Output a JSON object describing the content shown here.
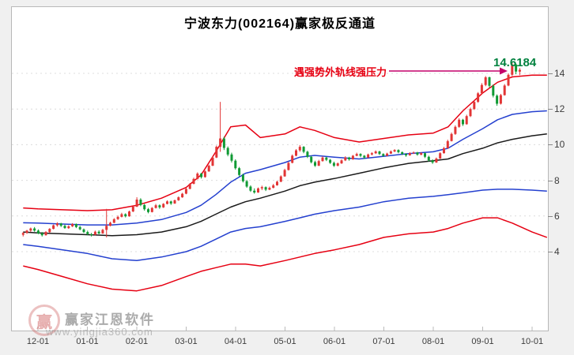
{
  "header": {
    "title": "宁波东力(002164)赢家极反通道"
  },
  "annotation": {
    "pressure_text": "遇强势外轨线强压力",
    "price_label": "14.6184",
    "text_color": "#e60012",
    "arrow_color": "#c4006a",
    "price_color": "#00813e"
  },
  "watermark": {
    "logo_char": "赢",
    "brand": "赢家江恩软件",
    "url": "www.yingjia360.com"
  },
  "chart_data": {
    "type": "candlestick",
    "title": "宁波东力(002164)赢家极反通道",
    "stock_code": "002164",
    "last_price": 14.6184,
    "grid": "dotted-horizontal",
    "colors": {
      "up": "#e23535",
      "down": "#109a34"
    },
    "x_axis": {
      "labels": [
        "12-01",
        "01-01",
        "02-01",
        "03-01",
        "04-01",
        "05-01",
        "06-01",
        "07-01",
        "08-01",
        "09-01",
        "10-01"
      ]
    },
    "y_axis": {
      "ticks": [
        14,
        12,
        10,
        8,
        6,
        4
      ],
      "range": [
        1.2,
        15.2
      ]
    },
    "series": {
      "channel_months": [
        -0.3,
        0,
        0.5,
        1,
        1.5,
        2,
        2.5,
        3,
        3.3,
        3.6,
        3.9,
        4.2,
        4.5,
        5,
        5.3,
        5.6,
        6,
        6.5,
        7,
        7.5,
        8,
        8.3,
        8.6,
        9,
        9.3,
        9.6,
        10,
        10.3
      ],
      "channel_lines": [
        {
          "name": "outer-upper-track",
          "color": "#e60012",
          "values": [
            6.45,
            6.4,
            6.35,
            6.3,
            6.35,
            6.6,
            7.0,
            7.6,
            8.3,
            9.6,
            11.0,
            11.1,
            10.4,
            10.6,
            11.0,
            10.8,
            10.4,
            10.15,
            10.35,
            10.55,
            10.65,
            11.0,
            11.9,
            12.9,
            13.5,
            13.8,
            13.9,
            13.9
          ]
        },
        {
          "name": "inner-upper-track",
          "color": "#2440cf",
          "values": [
            5.62,
            5.6,
            5.55,
            5.5,
            5.5,
            5.6,
            5.8,
            6.2,
            6.6,
            7.2,
            7.9,
            8.4,
            8.6,
            9.0,
            9.3,
            9.4,
            9.3,
            9.2,
            9.35,
            9.5,
            9.6,
            9.8,
            10.3,
            10.9,
            11.4,
            11.7,
            11.85,
            11.9
          ]
        },
        {
          "name": "life-line",
          "color": "#1a1a1a",
          "values": [
            5.1,
            5.05,
            5.0,
            4.95,
            4.9,
            4.95,
            5.1,
            5.4,
            5.7,
            6.1,
            6.5,
            6.8,
            7.0,
            7.4,
            7.7,
            7.9,
            8.1,
            8.4,
            8.7,
            8.95,
            9.1,
            9.2,
            9.5,
            9.8,
            10.1,
            10.3,
            10.5,
            10.6
          ]
        },
        {
          "name": "inner-lower-track",
          "color": "#2440cf",
          "values": [
            4.4,
            4.3,
            4.1,
            3.9,
            3.6,
            3.5,
            3.7,
            4.0,
            4.3,
            4.7,
            5.1,
            5.3,
            5.4,
            5.7,
            5.9,
            6.1,
            6.3,
            6.5,
            6.8,
            7.0,
            7.1,
            7.2,
            7.3,
            7.45,
            7.5,
            7.5,
            7.45,
            7.4
          ]
        },
        {
          "name": "outer-lower-track",
          "color": "#e60012",
          "values": [
            3.2,
            3.0,
            2.6,
            2.2,
            1.9,
            1.8,
            2.1,
            2.6,
            2.9,
            3.1,
            3.3,
            3.3,
            3.2,
            3.5,
            3.7,
            3.9,
            4.1,
            4.4,
            4.8,
            5.0,
            5.1,
            5.3,
            5.6,
            5.9,
            5.9,
            5.6,
            5.1,
            4.8
          ]
        }
      ],
      "candles": {
        "start_month": -0.3,
        "end_month": 9.75,
        "ohlc": [
          [
            4.95,
            5.1,
            4.85,
            5.05
          ],
          [
            5.05,
            5.22,
            5.0,
            5.18
          ],
          [
            5.18,
            5.35,
            5.1,
            5.3
          ],
          [
            5.3,
            5.38,
            5.12,
            5.18
          ],
          [
            5.18,
            5.25,
            4.98,
            5.02
          ],
          [
            5.02,
            5.1,
            4.85,
            4.92
          ],
          [
            4.92,
            5.15,
            4.9,
            5.1
          ],
          [
            5.1,
            5.32,
            5.05,
            5.28
          ],
          [
            5.28,
            5.52,
            5.25,
            5.48
          ],
          [
            5.48,
            5.65,
            5.4,
            5.58
          ],
          [
            5.58,
            5.62,
            5.38,
            5.45
          ],
          [
            5.45,
            5.52,
            5.28,
            5.32
          ],
          [
            5.32,
            5.48,
            5.28,
            5.42
          ],
          [
            5.42,
            5.6,
            5.38,
            5.55
          ],
          [
            5.55,
            5.58,
            5.32,
            5.38
          ],
          [
            5.38,
            5.45,
            5.2,
            5.25
          ],
          [
            5.25,
            5.3,
            5.05,
            5.1
          ],
          [
            5.1,
            5.18,
            4.92,
            4.98
          ],
          [
            4.98,
            5.05,
            4.85,
            4.95
          ],
          [
            4.95,
            5.18,
            4.92,
            5.12
          ],
          [
            5.12,
            5.2,
            4.98,
            5.02
          ],
          [
            5.02,
            5.28,
            5.0,
            5.22
          ],
          [
            5.22,
            6.4,
            4.8,
            5.45
          ],
          [
            5.45,
            5.68,
            5.42,
            5.62
          ],
          [
            5.62,
            5.88,
            5.6,
            5.82
          ],
          [
            5.82,
            6.02,
            5.78,
            5.95
          ],
          [
            5.95,
            6.18,
            5.92,
            6.1
          ],
          [
            6.1,
            6.15,
            5.92,
            5.98
          ],
          [
            5.98,
            6.3,
            5.96,
            6.25
          ],
          [
            6.25,
            6.6,
            6.22,
            6.52
          ],
          [
            6.52,
            7.05,
            6.5,
            6.92
          ],
          [
            6.92,
            7.0,
            6.55,
            6.62
          ],
          [
            6.62,
            6.68,
            6.3,
            6.38
          ],
          [
            6.38,
            6.45,
            6.15,
            6.22
          ],
          [
            6.22,
            6.5,
            6.2,
            6.45
          ],
          [
            6.45,
            6.68,
            6.42,
            6.6
          ],
          [
            6.6,
            6.65,
            6.4,
            6.48
          ],
          [
            6.48,
            6.72,
            6.45,
            6.68
          ],
          [
            6.68,
            6.88,
            6.65,
            6.82
          ],
          [
            6.82,
            6.86,
            6.62,
            6.7
          ],
          [
            6.7,
            6.92,
            6.68,
            6.88
          ],
          [
            6.88,
            7.1,
            6.85,
            7.05
          ],
          [
            7.05,
            7.3,
            7.02,
            7.25
          ],
          [
            7.25,
            7.58,
            7.22,
            7.52
          ],
          [
            7.52,
            7.85,
            7.5,
            7.8
          ],
          [
            7.8,
            8.15,
            7.78,
            8.08
          ],
          [
            8.08,
            8.45,
            8.05,
            8.38
          ],
          [
            8.38,
            8.42,
            8.1,
            8.18
          ],
          [
            8.18,
            8.55,
            8.15,
            8.5
          ],
          [
            8.5,
            8.88,
            8.48,
            8.82
          ],
          [
            8.82,
            9.35,
            8.8,
            9.28
          ],
          [
            9.28,
            9.95,
            9.25,
            9.88
          ],
          [
            9.88,
            12.4,
            9.6,
            10.35
          ],
          [
            10.35,
            10.45,
            9.7,
            9.82
          ],
          [
            9.82,
            9.9,
            9.35,
            9.45
          ],
          [
            9.45,
            9.55,
            9.0,
            9.1
          ],
          [
            9.1,
            9.18,
            8.6,
            8.68
          ],
          [
            8.68,
            8.75,
            8.22,
            8.3
          ],
          [
            8.3,
            8.38,
            7.88,
            7.95
          ],
          [
            7.95,
            8.02,
            7.58,
            7.65
          ],
          [
            7.65,
            7.72,
            7.35,
            7.42
          ],
          [
            7.42,
            7.55,
            7.25,
            7.32
          ],
          [
            7.32,
            7.6,
            7.3,
            7.55
          ],
          [
            7.55,
            7.7,
            7.45,
            7.62
          ],
          [
            7.62,
            7.66,
            7.4,
            7.48
          ],
          [
            7.48,
            7.65,
            7.45,
            7.58
          ],
          [
            7.58,
            7.8,
            7.55,
            7.72
          ],
          [
            7.72,
            7.98,
            7.7,
            7.92
          ],
          [
            7.92,
            8.28,
            7.9,
            8.22
          ],
          [
            8.22,
            8.65,
            8.2,
            8.58
          ],
          [
            8.58,
            9.05,
            8.55,
            8.98
          ],
          [
            8.98,
            9.45,
            8.95,
            9.38
          ],
          [
            9.38,
            9.75,
            9.35,
            9.68
          ],
          [
            9.68,
            9.98,
            9.6,
            9.88
          ],
          [
            9.88,
            9.92,
            9.52,
            9.6
          ],
          [
            9.6,
            9.66,
            9.25,
            9.32
          ],
          [
            9.32,
            9.38,
            8.95,
            9.02
          ],
          [
            9.02,
            9.1,
            8.75,
            8.82
          ],
          [
            8.82,
            9.15,
            8.8,
            9.08
          ],
          [
            9.08,
            9.35,
            9.05,
            9.28
          ],
          [
            9.28,
            9.32,
            9.08,
            9.15
          ],
          [
            9.15,
            9.2,
            8.92,
            8.98
          ],
          [
            8.98,
            9.05,
            8.75,
            8.82
          ],
          [
            8.82,
            9.0,
            8.78,
            8.95
          ],
          [
            8.95,
            9.18,
            8.92,
            9.12
          ],
          [
            9.12,
            9.35,
            9.08,
            9.28
          ],
          [
            9.28,
            9.32,
            9.1,
            9.18
          ],
          [
            9.18,
            9.42,
            9.15,
            9.38
          ],
          [
            9.38,
            9.55,
            9.35,
            9.48
          ],
          [
            9.48,
            9.52,
            9.3,
            9.38
          ],
          [
            9.38,
            9.42,
            9.2,
            9.28
          ],
          [
            9.28,
            9.5,
            9.25,
            9.45
          ],
          [
            9.45,
            9.58,
            9.4,
            9.52
          ],
          [
            9.52,
            9.68,
            9.48,
            9.62
          ],
          [
            9.62,
            9.66,
            9.42,
            9.48
          ],
          [
            9.48,
            9.52,
            9.32,
            9.38
          ],
          [
            9.38,
            9.55,
            9.35,
            9.5
          ],
          [
            9.5,
            9.68,
            9.48,
            9.62
          ],
          [
            9.62,
            9.75,
            9.58,
            9.7
          ],
          [
            9.7,
            9.74,
            9.52,
            9.58
          ],
          [
            9.58,
            9.62,
            9.42,
            9.48
          ],
          [
            9.48,
            9.52,
            9.32,
            9.4
          ],
          [
            9.4,
            9.58,
            9.38,
            9.52
          ],
          [
            9.52,
            9.62,
            9.48,
            9.56
          ],
          [
            9.56,
            9.6,
            9.38,
            9.44
          ],
          [
            9.44,
            9.58,
            9.4,
            9.52
          ],
          [
            9.52,
            9.56,
            9.25,
            9.32
          ],
          [
            9.32,
            9.38,
            9.05,
            9.12
          ],
          [
            9.12,
            9.18,
            8.92,
            9.0
          ],
          [
            9.0,
            9.28,
            8.98,
            9.22
          ],
          [
            9.22,
            9.58,
            9.2,
            9.52
          ],
          [
            9.52,
            9.88,
            9.5,
            9.8
          ],
          [
            9.8,
            10.28,
            9.78,
            10.2
          ],
          [
            10.2,
            10.68,
            10.18,
            10.6
          ],
          [
            10.6,
            11.08,
            10.55,
            11.0
          ],
          [
            11.0,
            11.48,
            10.95,
            11.4
          ],
          [
            11.4,
            11.45,
            11.05,
            11.15
          ],
          [
            11.15,
            11.68,
            11.12,
            11.6
          ],
          [
            11.6,
            12.08,
            11.55,
            12.0
          ],
          [
            12.0,
            12.5,
            11.95,
            12.4
          ],
          [
            12.4,
            12.95,
            12.35,
            12.88
          ],
          [
            12.88,
            13.45,
            12.82,
            13.35
          ],
          [
            13.35,
            13.85,
            13.28,
            13.78
          ],
          [
            13.78,
            13.82,
            13.2,
            13.3
          ],
          [
            13.3,
            13.38,
            12.65,
            12.75
          ],
          [
            12.75,
            12.82,
            12.18,
            12.3
          ],
          [
            12.3,
            12.85,
            12.25,
            12.78
          ],
          [
            12.78,
            13.4,
            12.75,
            13.32
          ],
          [
            13.32,
            14.0,
            13.28,
            13.92
          ],
          [
            13.92,
            14.62,
            13.85,
            14.5
          ],
          [
            14.5,
            14.55,
            13.95,
            14.1
          ],
          [
            14.1,
            14.3,
            13.9,
            14.2
          ]
        ]
      }
    },
    "annotations": [
      {
        "text": "遇强势外轨线强压力",
        "target_value": 14.6184,
        "style": "arrow-right"
      }
    ]
  }
}
